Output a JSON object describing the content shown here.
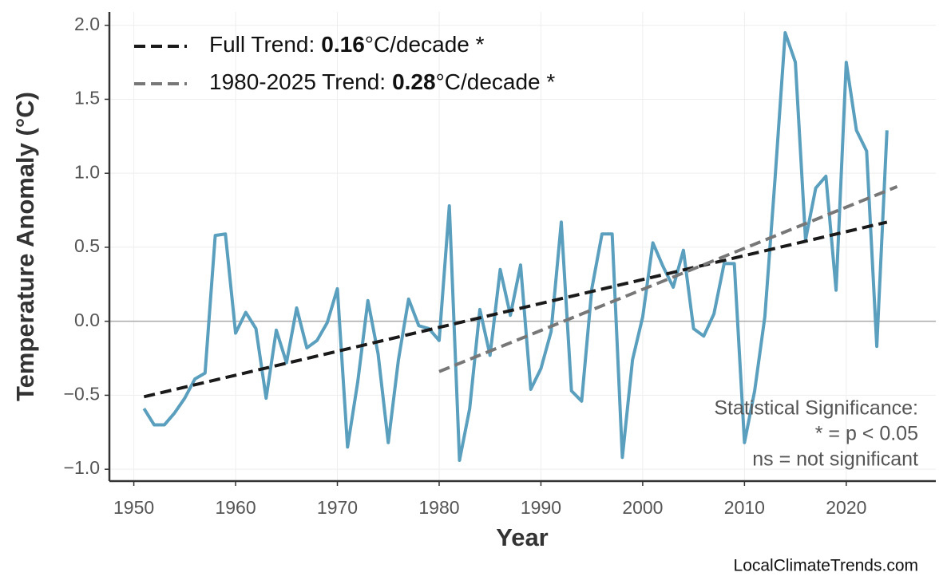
{
  "chart_data": {
    "type": "line",
    "x_label": "Year",
    "y_label": "Temperature Anomaly (°C)",
    "x": [
      1951,
      1952,
      1953,
      1954,
      1955,
      1956,
      1957,
      1958,
      1959,
      1960,
      1961,
      1962,
      1963,
      1964,
      1965,
      1966,
      1967,
      1968,
      1969,
      1970,
      1971,
      1972,
      1973,
      1974,
      1975,
      1976,
      1977,
      1978,
      1979,
      1980,
      1981,
      1982,
      1983,
      1984,
      1985,
      1986,
      1987,
      1988,
      1989,
      1990,
      1991,
      1992,
      1993,
      1994,
      1995,
      1996,
      1997,
      1998,
      1999,
      2000,
      2001,
      2002,
      2003,
      2004,
      2005,
      2006,
      2007,
      2008,
      2009,
      2010,
      2011,
      2012,
      2013,
      2014,
      2015,
      2016,
      2017,
      2018,
      2019,
      2020,
      2021,
      2022,
      2023,
      2024
    ],
    "series": [
      {
        "color": "#5a9fbe",
        "values": [
          -0.59,
          -0.7,
          -0.7,
          -0.62,
          -0.52,
          -0.39,
          -0.35,
          0.58,
          0.59,
          -0.08,
          0.06,
          -0.05,
          -0.52,
          -0.06,
          -0.28,
          0.09,
          -0.18,
          -0.13,
          -0.01,
          0.22,
          -0.85,
          -0.41,
          0.14,
          -0.22,
          -0.82,
          -0.26,
          0.15,
          -0.03,
          -0.05,
          -0.13,
          0.78,
          -0.94,
          -0.59,
          0.08,
          -0.23,
          0.35,
          0.04,
          0.38,
          -0.46,
          -0.32,
          -0.07,
          0.67,
          -0.47,
          -0.54,
          0.22,
          0.59,
          0.59,
          -0.92,
          -0.26,
          0.03,
          0.53,
          0.37,
          0.23,
          0.48,
          -0.05,
          -0.1,
          0.05,
          0.39,
          0.39,
          -0.82,
          -0.47,
          0.03,
          0.96,
          1.95,
          1.75,
          0.55,
          0.9,
          0.98,
          0.21,
          1.75,
          1.29,
          1.15,
          -0.17,
          1.29
        ]
      }
    ],
    "trends": [
      {
        "name": "Full Trend:",
        "slope": 0.16,
        "unit": "°C/decade *",
        "color": "#1a1a1a",
        "x": [
          1951,
          2024
        ],
        "values": [
          -0.51,
          0.67
        ]
      },
      {
        "name": "1980-2025 Trend:",
        "slope": 0.28,
        "unit": "°C/decade *",
        "color": "#777777",
        "x": [
          1980,
          2025
        ],
        "values": [
          -0.34,
          0.91
        ]
      }
    ],
    "xlim": [
      1947.6,
      2028.8
    ],
    "ylim": [
      -1.08,
      2.09
    ],
    "xticks": [
      1950,
      1960,
      1970,
      1980,
      1990,
      2000,
      2010,
      2020
    ],
    "yticks": [
      {
        "value": -1.0,
        "label": "−1.0"
      },
      {
        "value": -0.5,
        "label": "−0.5"
      },
      {
        "value": 0.0,
        "label": "0.0"
      },
      0.5,
      {
        "value": 1.0,
        "label": "1.0"
      },
      1.5,
      {
        "value": 2.0,
        "label": "2.0"
      }
    ],
    "grid": true,
    "reference_line": 0,
    "annotation": [
      "Statistical Significance:",
      "* = p < 0.05",
      "ns = not significant"
    ],
    "watermark": "LocalClimateTrends.com"
  }
}
